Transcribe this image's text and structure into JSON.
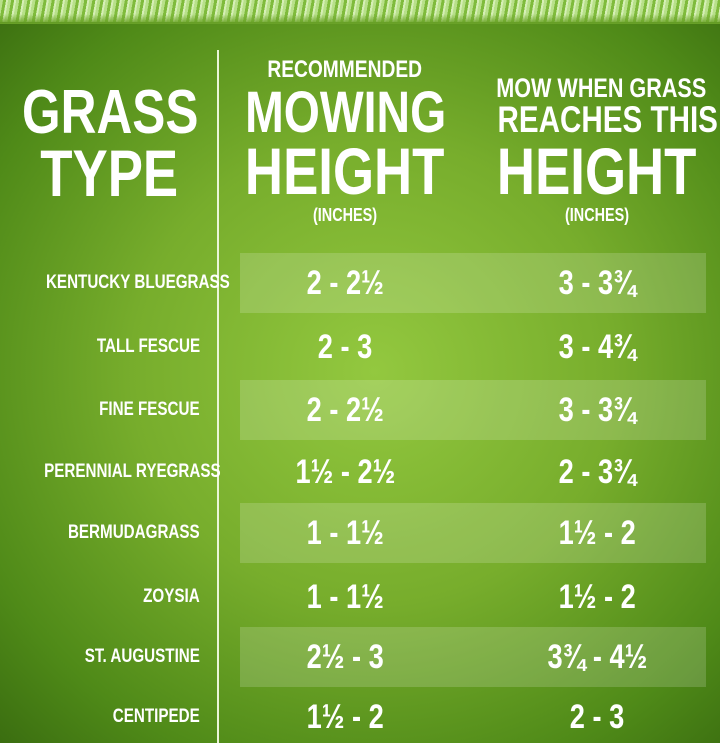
{
  "header": {
    "grass_type": [
      "GRASS",
      "TYPE"
    ],
    "recommended": [
      "RECOMMENDED",
      "MOWING",
      "HEIGHT",
      "(INCHES)"
    ],
    "mow_when": [
      "MOW WHEN GRASS",
      "REACHES THIS",
      "HEIGHT",
      "(INCHES)"
    ]
  },
  "rows": [
    {
      "name": "KENTUCKY BLUEGRASS",
      "recommended": "2 - 2½",
      "mow_when": "3 - 3¾"
    },
    {
      "name": "TALL FESCUE",
      "recommended": "2 - 3",
      "mow_when": "3 - 4¾"
    },
    {
      "name": "FINE FESCUE",
      "recommended": "2 - 2½",
      "mow_when": "3 - 3¾"
    },
    {
      "name": "PERENNIAL RYEGRASS",
      "recommended": "1½ - 2½",
      "mow_when": "2 - 3¾"
    },
    {
      "name": "BERMUDAGRASS",
      "recommended": "1 - 1½",
      "mow_when": "1½ - 2"
    },
    {
      "name": "ZOYSIA",
      "recommended": "1 - 1½",
      "mow_when": "1½ - 2"
    },
    {
      "name": "ST. AUGUSTINE",
      "recommended": "2½ - 3",
      "mow_when": "3¾ - 4½"
    },
    {
      "name": "CENTIPEDE",
      "recommended": "1½ - 2",
      "mow_when": "2 - 3"
    }
  ]
}
